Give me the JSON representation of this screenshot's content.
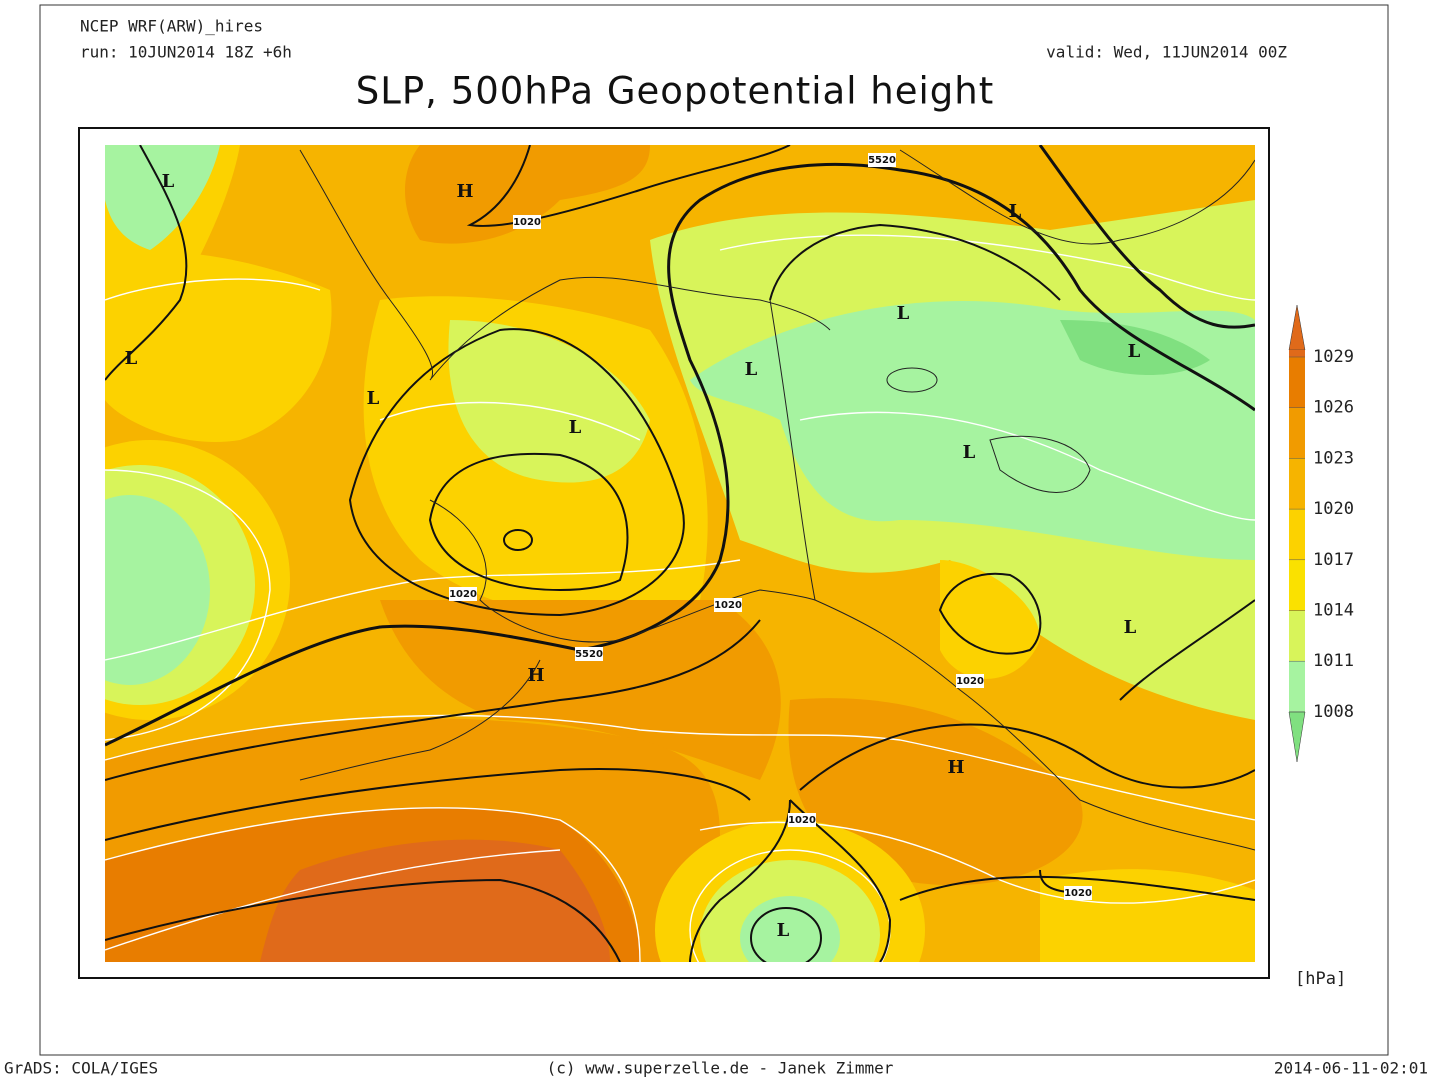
{
  "header": {
    "model": "NCEP WRF(ARW)_hires",
    "run": "run: 10JUN2014 18Z +6h",
    "valid": "valid: Wed, 11JUN2014 00Z",
    "title": "SLP, 500hPa Geopotential height"
  },
  "map": {
    "pressure_centers": [
      "L",
      "L",
      "L",
      "L",
      "L",
      "L",
      "L",
      "L",
      "L",
      "L",
      "L",
      "H",
      "H",
      "H"
    ],
    "contour_labels": [
      "1020",
      "1020",
      "1020",
      "1020",
      "1020",
      "1020",
      "5520",
      "5520"
    ]
  },
  "colorbar": {
    "ticks": [
      1029,
      1026,
      1023,
      1020,
      1017,
      1014,
      1011,
      1008
    ],
    "unit": "[hPa]"
  },
  "footer": {
    "left": "GrADS: COLA/IGES",
    "center": "(c) www.superzelle.de - Janek Zimmer",
    "right": "2014-06-11-02:01"
  }
}
